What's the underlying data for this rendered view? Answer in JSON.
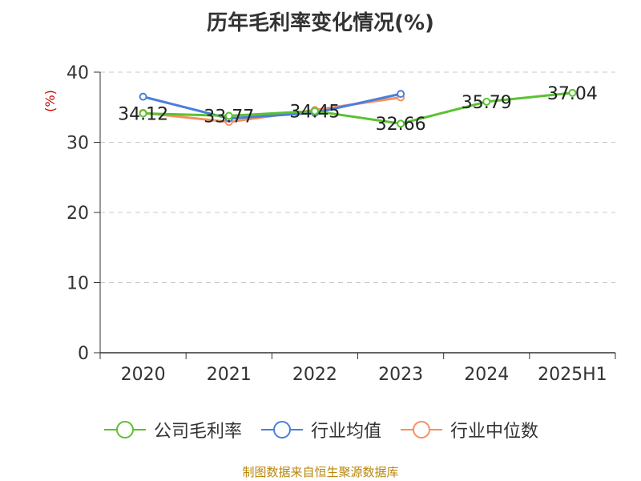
{
  "chart_data": {
    "type": "line",
    "title": "历年毛利率变化情况(%)",
    "ylabel": "(%)",
    "xlabel": "",
    "categories": [
      "2020",
      "2021",
      "2022",
      "2023",
      "2024",
      "2025H1"
    ],
    "ylim": [
      0,
      40
    ],
    "yticks": [
      0,
      10,
      20,
      30,
      40
    ],
    "grid": true,
    "legend_position": "bottom",
    "series": [
      {
        "name": "公司毛利率",
        "color": "#5cc132",
        "values": [
          34.12,
          33.77,
          34.45,
          32.66,
          35.79,
          37.04
        ],
        "labels": [
          "34.12",
          "33.77",
          "34.45",
          "32.66",
          "35.79",
          "37.04"
        ]
      },
      {
        "name": "行业均值",
        "color": "#4a7fdb",
        "values": [
          36.5,
          33.4,
          34.2,
          36.9,
          null,
          null
        ]
      },
      {
        "name": "行业中位数",
        "color": "#f5925f",
        "values": [
          34.2,
          32.9,
          34.6,
          36.4,
          null,
          null
        ]
      }
    ]
  },
  "footer": {
    "source": "制图数据来自恒生聚源数据库"
  }
}
